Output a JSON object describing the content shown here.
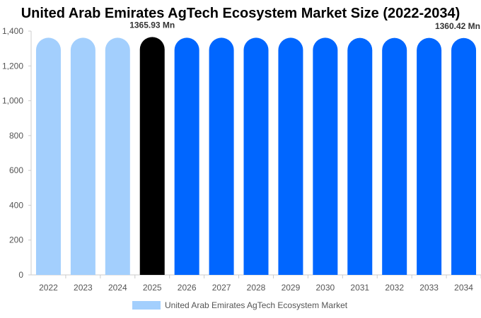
{
  "chart_data": {
    "type": "bar",
    "title": "United Arab Emirates AgTech Ecosystem Market Size (2022-2034)",
    "categories": [
      "2022",
      "2023",
      "2024",
      "2025",
      "2026",
      "2027",
      "2028",
      "2029",
      "2030",
      "2031",
      "2032",
      "2033",
      "2034"
    ],
    "series": [
      {
        "name": "United Arab Emirates AgTech Ecosystem Market",
        "values": [
          1362,
          1362,
          1362,
          1365.93,
          1362,
          1362,
          1362,
          1362,
          1362,
          1361,
          1361,
          1361,
          1360.42
        ]
      }
    ],
    "ylim": [
      0,
      1400
    ],
    "yticks": [
      0,
      200,
      400,
      600,
      800,
      1000,
      1200,
      1400
    ],
    "ytick_labels": [
      "0",
      "200",
      "400",
      "600",
      "800",
      "1,000",
      "1,200",
      "1,400"
    ],
    "annotations": [
      {
        "category": "2025",
        "text": "1365.93 Mn"
      },
      {
        "category": "2034",
        "text": "1360.42 Mn"
      }
    ],
    "bar_colors": {
      "historical": "#a3cffd",
      "base_year": "#000000",
      "forecast": "#0066ff"
    },
    "bar_color_by_category": [
      "historical",
      "historical",
      "historical",
      "base_year",
      "forecast",
      "forecast",
      "forecast",
      "forecast",
      "forecast",
      "forecast",
      "forecast",
      "forecast",
      "forecast"
    ],
    "legend": {
      "position": "bottom",
      "swatch_color": "#a3cffd"
    },
    "grid": false
  }
}
